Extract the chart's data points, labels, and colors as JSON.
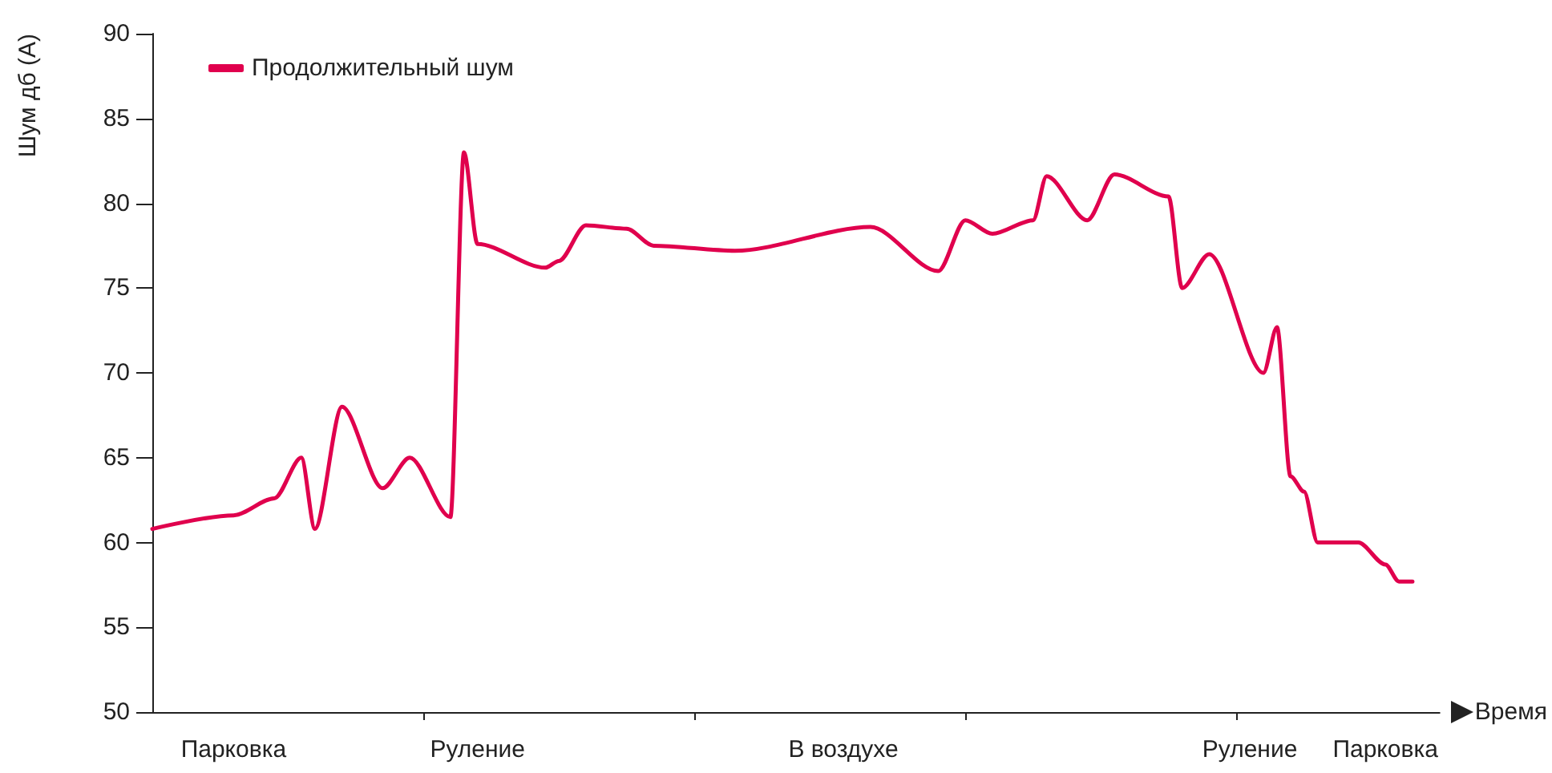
{
  "chart_data": {
    "type": "line",
    "xlabel": "Время",
    "ylabel": "Шум дб (A)",
    "categories": [
      null,
      null,
      null,
      null,
      null,
      null,
      "Парковка",
      null,
      null,
      null,
      null,
      null,
      null,
      null,
      null,
      null,
      null,
      null,
      null,
      null,
      null,
      null,
      null,
      null,
      "Руление",
      null,
      null,
      null,
      null,
      null,
      null,
      null,
      null,
      null,
      null,
      null,
      null,
      null,
      null,
      null,
      null,
      null,
      null,
      null,
      null,
      null,
      null,
      null,
      null,
      null,
      null,
      "В воздухе",
      null,
      null,
      null,
      null,
      null,
      null,
      null,
      null,
      null,
      null,
      null,
      null,
      null,
      null,
      null,
      null,
      null,
      null,
      null,
      null,
      null,
      null,
      null,
      null,
      null,
      null,
      null,
      null,
      null,
      "Руление",
      null,
      null,
      null,
      null,
      null,
      null,
      null,
      null,
      null,
      "Парковка",
      null,
      null,
      null,
      null
    ],
    "ylim": [
      50,
      90
    ],
    "yticks": [
      50,
      55,
      60,
      65,
      70,
      75,
      80,
      85,
      90
    ],
    "grid": false,
    "legend": "top left",
    "marker": "none",
    "line_style": "solid",
    "series": [
      {
        "name": "Продолжительный шум",
        "color": "#e0004d",
        "values": [
          60.8,
          null,
          null,
          null,
          null,
          null,
          61.6,
          null,
          null,
          62.6,
          null,
          65,
          60.8,
          null,
          68,
          null,
          null,
          63.2,
          null,
          65,
          null,
          null,
          61.5,
          83,
          77.6,
          null,
          null,
          null,
          null,
          76.2,
          76.6,
          null,
          78.7,
          null,
          null,
          78.5,
          null,
          77.5,
          null,
          null,
          null,
          null,
          null,
          77.2,
          null,
          null,
          null,
          null,
          null,
          null,
          null,
          null,
          null,
          78.6,
          null,
          null,
          null,
          null,
          76,
          null,
          79,
          null,
          78.2,
          null,
          null,
          79,
          81.6,
          null,
          null,
          79,
          null,
          81.7,
          null,
          null,
          null,
          80.4,
          75,
          null,
          77,
          null,
          null,
          null,
          70,
          72.7,
          63.9,
          63,
          60,
          null,
          null,
          60,
          null,
          58.7,
          57.7,
          57.7,
          null,
          null
        ]
      }
    ]
  }
}
